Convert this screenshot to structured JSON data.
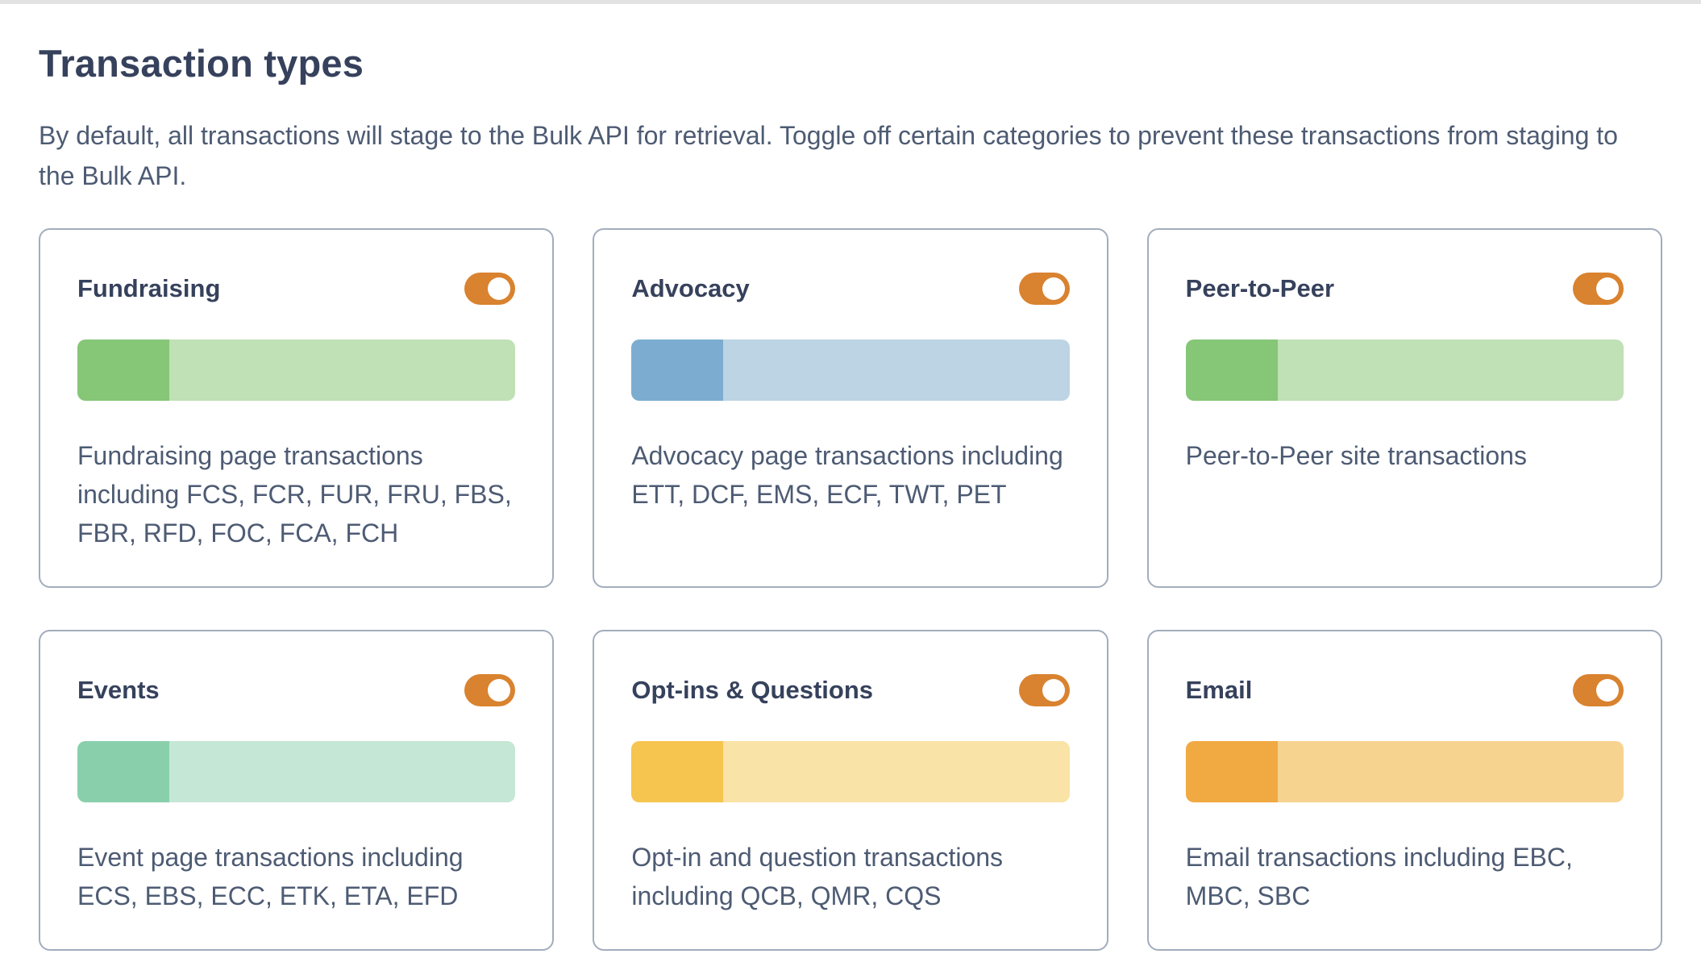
{
  "page": {
    "title": "Transaction types",
    "description": "By default, all transactions will stage to the Bulk API for retrieval. Toggle off certain categories to prevent these transactions from staging to the Bulk API."
  },
  "colors": {
    "toggle_on": "#d9822f",
    "card_border": "#a2adbd",
    "heading_text": "#36415c",
    "body_text": "#4d5b73"
  },
  "cards": [
    {
      "title": "Fundraising",
      "description": "Fundraising page transactions including FCS, FCR, FUR, FRU, FBS, FBR, RFD, FOC, FCA, FCH",
      "toggle_on": true,
      "bar": {
        "fill_percent": 21,
        "fill_color": "#85c677",
        "track_color": "#c0e0b5"
      }
    },
    {
      "title": "Advocacy",
      "description": "Advocacy page transactions including ETT, DCF, EMS, ECF, TWT, PET",
      "toggle_on": true,
      "bar": {
        "fill_percent": 21,
        "fill_color": "#7cadd0",
        "track_color": "#bcd4e3"
      }
    },
    {
      "title": "Peer-to-Peer",
      "description": "Peer-to-Peer site transactions",
      "toggle_on": true,
      "bar": {
        "fill_percent": 21,
        "fill_color": "#85c677",
        "track_color": "#c0e0b5"
      }
    },
    {
      "title": "Events",
      "description": "Event page transactions including ECS, EBS, ECC, ETK, ETA, EFD",
      "toggle_on": true,
      "bar": {
        "fill_percent": 21,
        "fill_color": "#89cfac",
        "track_color": "#c5e7d5"
      }
    },
    {
      "title": "Opt-ins & Questions",
      "description": "Opt-in and question transactions including QCB, QMR, CQS",
      "toggle_on": true,
      "bar": {
        "fill_percent": 21,
        "fill_color": "#f5c54f",
        "track_color": "#fae3a6"
      }
    },
    {
      "title": "Email",
      "description": "Email transactions including EBC, MBC, SBC",
      "toggle_on": true,
      "bar": {
        "fill_percent": 21,
        "fill_color": "#f1a942",
        "track_color": "#f7d390"
      }
    }
  ]
}
